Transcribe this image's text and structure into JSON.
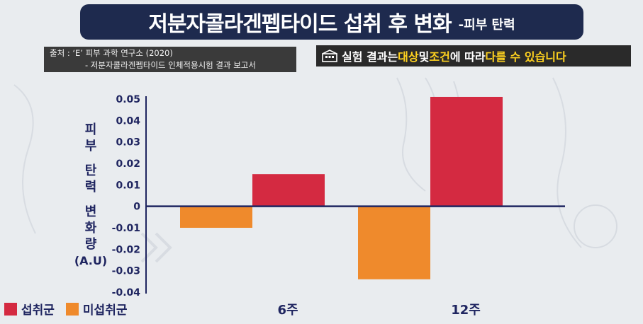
{
  "title": {
    "main": "저분자콜라겐펩타이드 섭취 후 변화",
    "sub": "-피부 탄력"
  },
  "source": {
    "line1": "출처 : ‘E’ 피부 과학 연구소 (2020)",
    "line2": "- 저분자콜라겐펩타이드 인체적용시험 결과 보고서"
  },
  "notice": {
    "icon": "building-icon",
    "parts": [
      "실험 결과는 ",
      "대상",
      " 및 ",
      "조건",
      "에 따라 ",
      "다를 수 있습니다"
    ]
  },
  "colors": {
    "intake": "#d42a41",
    "nonintake": "#ef8a2c",
    "title_bg": "#1e2a4e",
    "text": "#1f2560",
    "highlight": "#ffd21f"
  },
  "chart_data": {
    "type": "bar",
    "categories": [
      "6주",
      "12주"
    ],
    "series": [
      {
        "name": "미섭취군",
        "values": [
          -0.01,
          -0.034
        ]
      },
      {
        "name": "섭취군",
        "values": [
          0.015,
          0.051
        ]
      }
    ],
    "ylabel_lines": [
      "피부",
      "탄력",
      "변화량",
      "(A.U)"
    ],
    "ylim": [
      -0.04,
      0.05
    ],
    "yticks": [
      "0.05",
      "0.04",
      "0.03",
      "0.02",
      "0.01",
      "0",
      "-0.01",
      "-0.02",
      "-0.03",
      "-0.04"
    ],
    "legend": [
      {
        "label": "섭취군"
      },
      {
        "label": "미섭취군"
      }
    ],
    "legend_position": "bottom-left",
    "grid": false
  }
}
